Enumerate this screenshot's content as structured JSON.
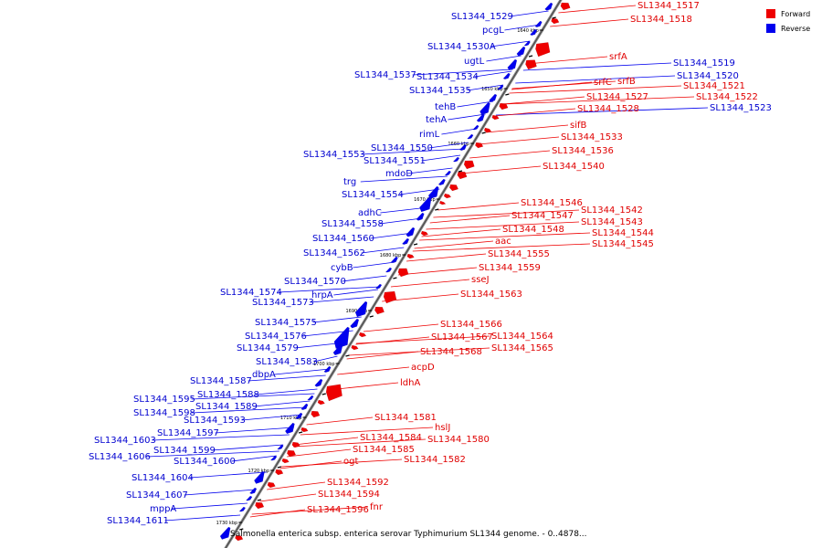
{
  "legend": {
    "forward": "Forward",
    "reverse": "Reverse",
    "forward_color": "#ee0000",
    "reverse_color": "#0000ee"
  },
  "caption": "Salmonella enterica subsp. enterica serovar Typhimurium SL1344 genome. - 0..4878...",
  "ticks": [
    "1640 kbp",
    "1650 kbp",
    "1660 kbp",
    "1670 kbp",
    "1680 kbp",
    "1690 kbp",
    "1700 kbp",
    "1710 kbp",
    "1720 kbp",
    "1730 kbp"
  ],
  "reverse_labels": [
    "SL1344_1529",
    "pcgL",
    "SL1344_1530A",
    "ugtL",
    "SL1344_1537",
    "SL1344_1534",
    "SL1344_1535",
    "tehB",
    "tehA",
    "rimL",
    "SL1344_1553",
    "SL1344_1550",
    "SL1344_1551",
    "mdoD",
    "trg",
    "SL1344_1554",
    "adhC",
    "SL1344_1558",
    "SL1344_1560",
    "SL1344_1562",
    "cybB",
    "SL1344_1570",
    "hrpA",
    "SL1344_1574",
    "SL1344_1573",
    "SL1344_1575",
    "SL1344_1576",
    "SL1344_1579",
    "SL1344_1583",
    "dbpA",
    "SL1344_1587",
    "SL1344_1588",
    "SL1344_1595",
    "SL1344_1589",
    "SL1344_1598",
    "SL1344_1593",
    "SL1344_1597",
    "SL1344_1603",
    "SL1344_1599",
    "SL1344_1606",
    "SL1344_1600",
    "SL1344_1604",
    "SL1344_1607",
    "mppA",
    "SL1344_1611",
    "SL1344_1519",
    "SL1344_1520",
    "SL1344_1523"
  ],
  "forward_labels": [
    "SL1344_1517",
    "SL1344_1518",
    "srfA",
    "srfC",
    "srfB",
    "SL1344_1521",
    "SL1344_1522",
    "SL1344_1527",
    "SL1344_1528",
    "sifB",
    "SL1344_1533",
    "SL1344_1536",
    "SL1344_1540",
    "SL1344_1546",
    "SL1344_1542",
    "SL1344_1547",
    "SL1344_1543",
    "SL1344_1548",
    "SL1344_1544",
    "aac",
    "SL1344_1545",
    "SL1344_1555",
    "SL1344_1559",
    "sseJ",
    "SL1344_1563",
    "SL1344_1566",
    "SL1344_1567",
    "SL1344_1564",
    "SL1344_1565",
    "SL1344_1568",
    "acpD",
    "ldhA",
    "SL1344_1581",
    "hslJ",
    "SL1344_1584",
    "SL1344_1580",
    "SL1344_1585",
    "SL1344_1582",
    "ogt",
    "SL1344_1592",
    "SL1344_1594",
    "fnr",
    "SL1344_1596"
  ]
}
